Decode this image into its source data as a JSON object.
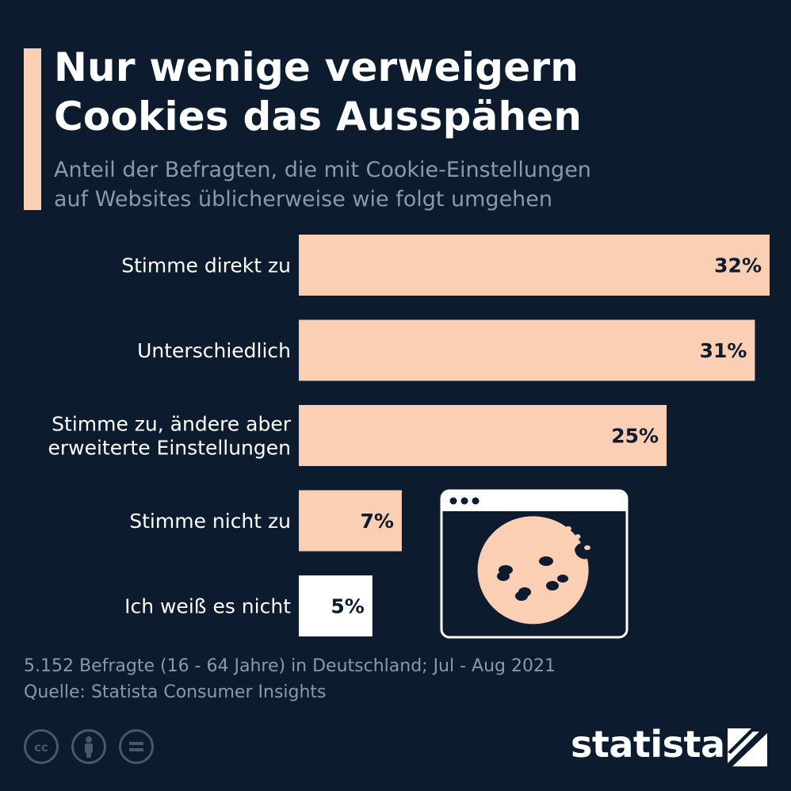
{
  "header": {
    "title_line1": "Nur wenige verweigern",
    "title_line2": "Cookies das Ausspähen",
    "subtitle_line1": "Anteil der Befragten, die mit Cookie-Einstellungen",
    "subtitle_line2": "auf Websites üblicherweise wie folgt umgehen"
  },
  "chart_data": {
    "type": "bar",
    "orientation": "horizontal",
    "categories": [
      [
        "Stimme direkt zu"
      ],
      [
        "Unterschiedlich"
      ],
      [
        "Stimme zu, ändere aber",
        "erweiterte Einstellungen"
      ],
      [
        "Stimme nicht zu"
      ],
      [
        "Ich weiß es nicht"
      ]
    ],
    "values": [
      32,
      31,
      25,
      7,
      5
    ],
    "value_labels": [
      "32%",
      "31%",
      "25%",
      "7%",
      "5%"
    ],
    "bar_colors": [
      "#fbcfb4",
      "#fbcfb4",
      "#fbcfb4",
      "#fbcfb4",
      "#ffffff"
    ],
    "xlim": [
      0,
      32
    ],
    "grid": false,
    "legend": "none"
  },
  "footer": {
    "note": "5.152 Befragte (16 - 64 Jahre) in Deutschland; Jul - Aug 2021",
    "source": "Quelle: Statista Consumer Insights",
    "brand": "statista",
    "icons": [
      "cc-icon",
      "by-icon",
      "nd-icon"
    ]
  },
  "colors": {
    "background": "#0d1b2e",
    "accent": "#fbcfb4",
    "text": "#ffffff",
    "muted": "#8b99ab",
    "value_text": "#0d1b2e"
  }
}
